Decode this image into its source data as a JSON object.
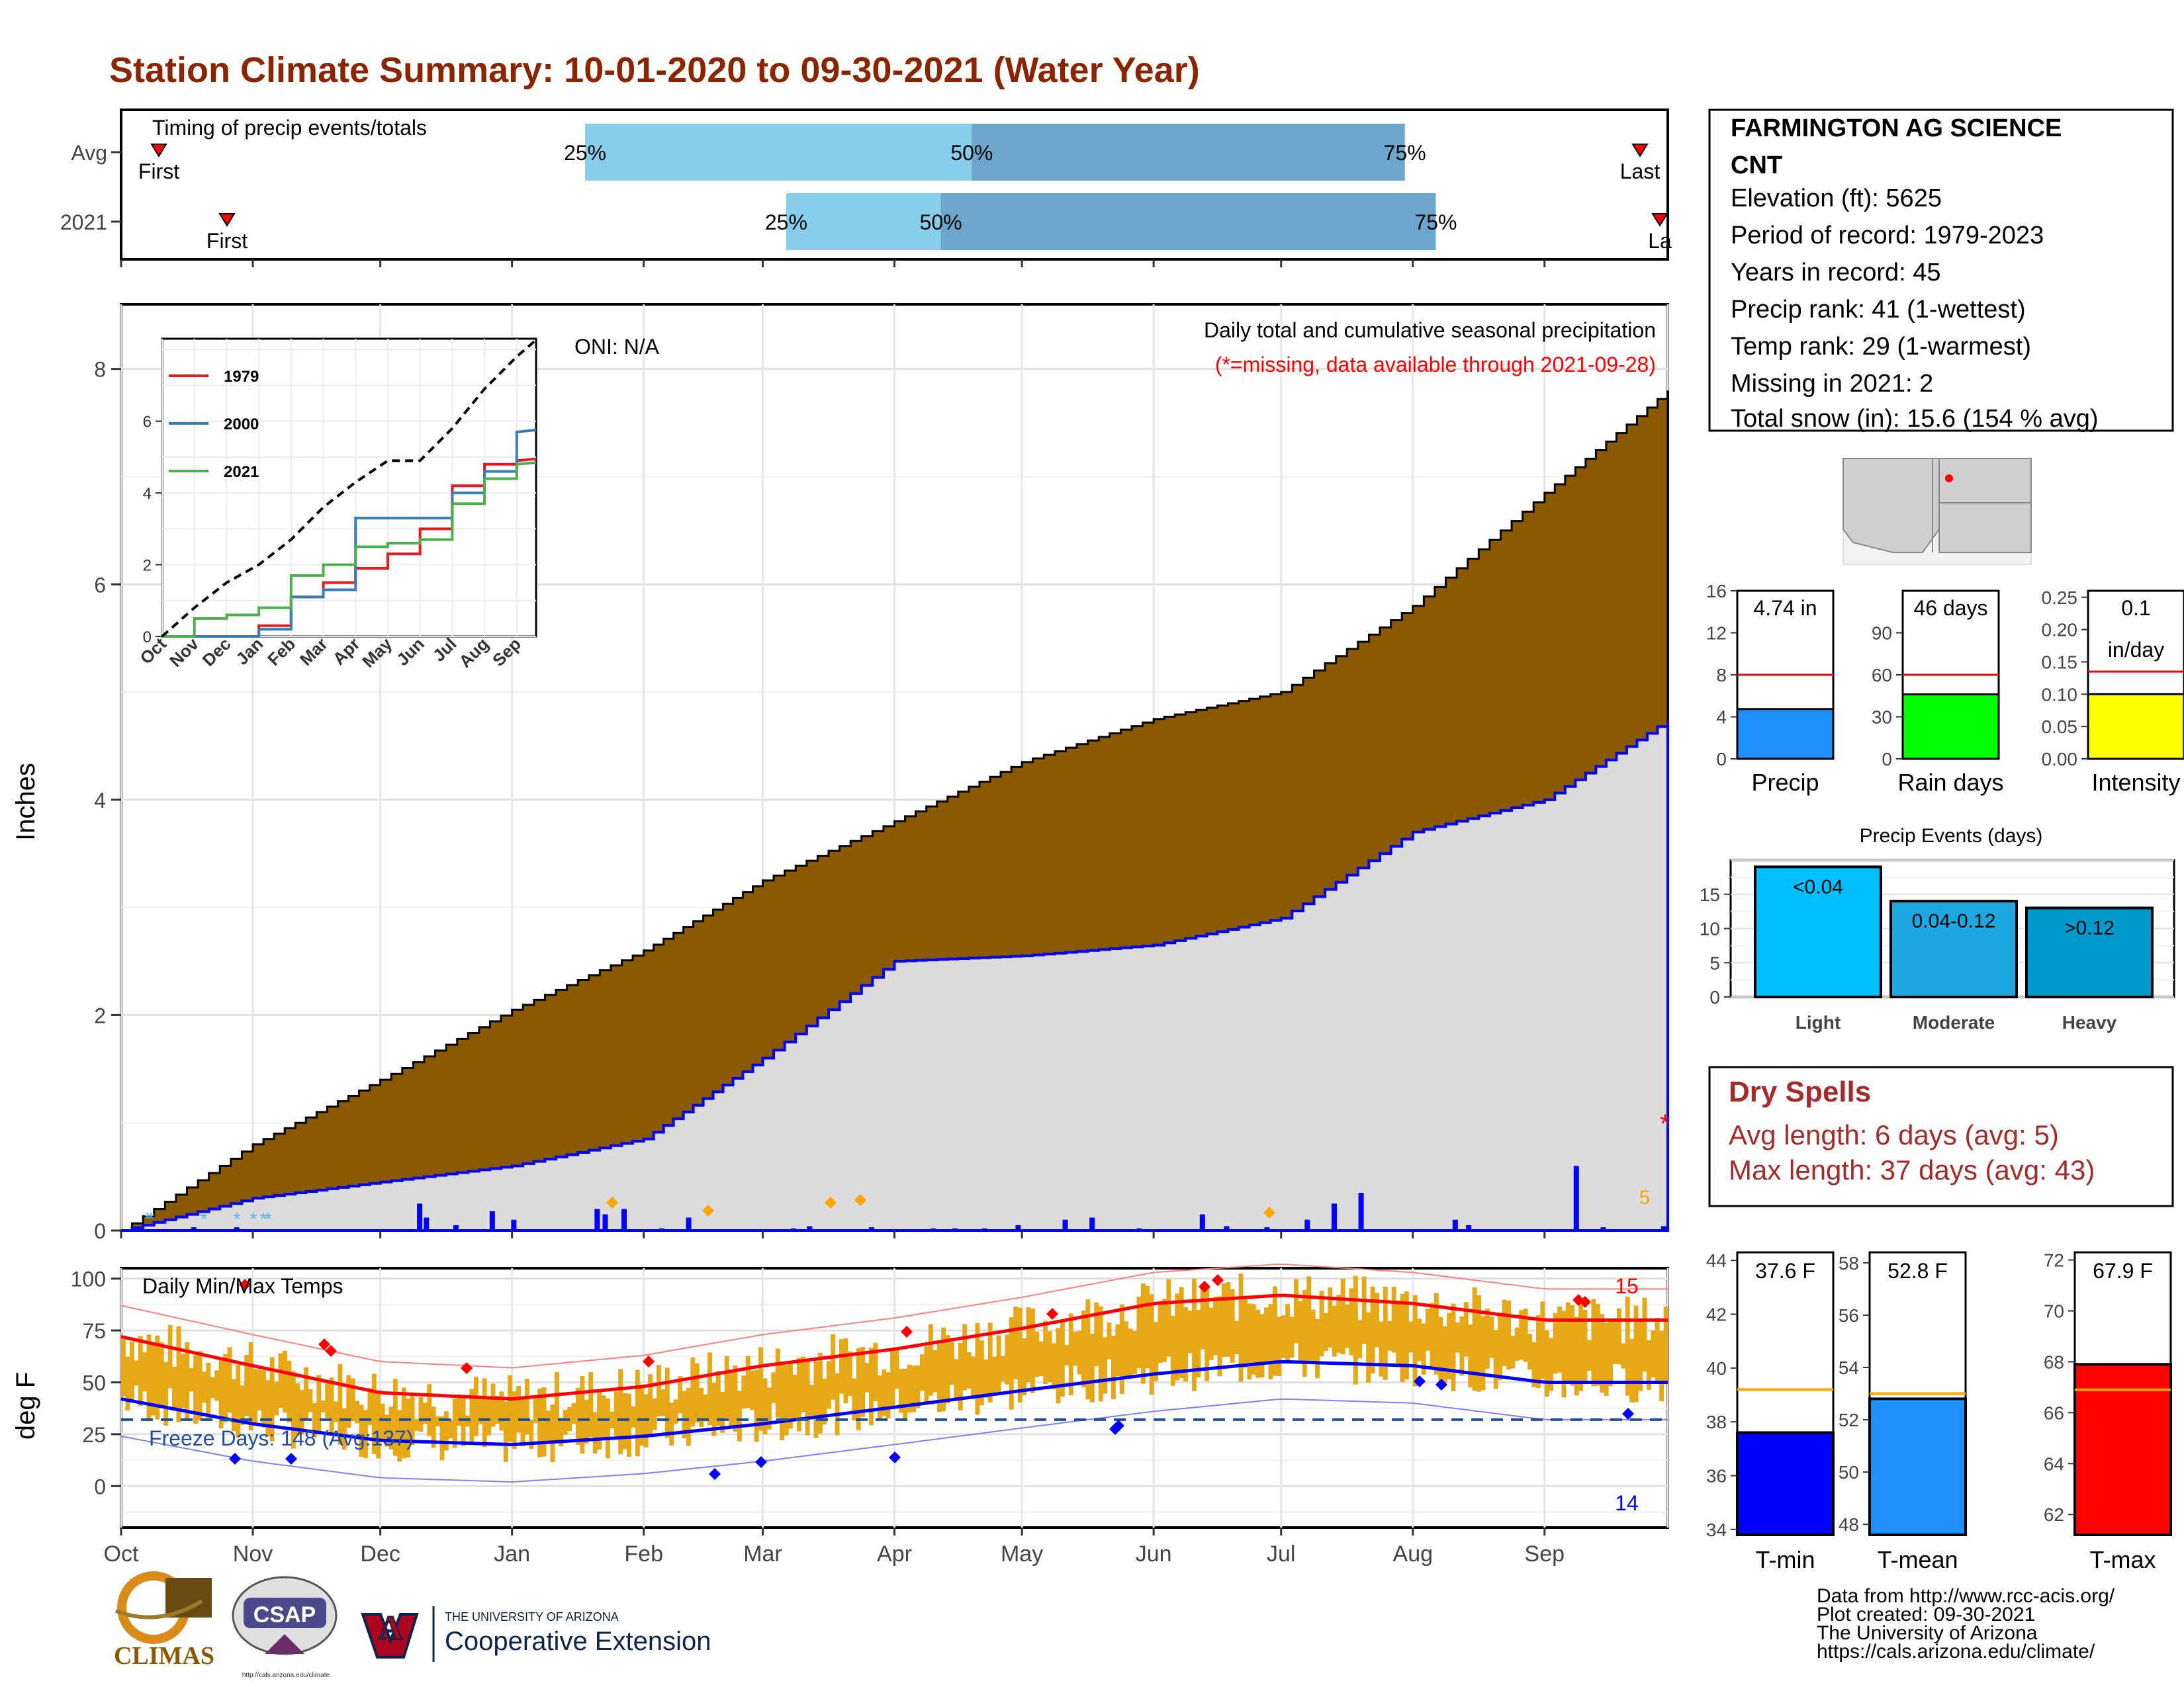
{
  "title": "Station Climate Summary: 10-01-2020 to 09-30-2021 (Water Year)",
  "colors": {
    "title": "#8B2500",
    "brown": "#8B5A00",
    "gray_fill": "#DCDCDC",
    "blue": "#0000FF",
    "light_blue": "#87CEEB",
    "mid_blue": "#6CA6CD",
    "orange": "#E6A817",
    "red": "#FF0000",
    "dry_spell": "#A52A2A",
    "green": "#00FF00",
    "yellow": "#FFFF00",
    "dodger": "#1E90FF",
    "deep_sky": "#00BFFF"
  },
  "timing": {
    "label": "Timing of precip events/totals",
    "rows": [
      {
        "name": "Avg",
        "first_label": "First",
        "last_label": "Last",
        "first": 0.0,
        "q25": 0.3,
        "q50": 0.55,
        "q75": 0.83,
        "last": 0.98
      },
      {
        "name": "2021",
        "first_label": "First",
        "last_label": "La",
        "first": 0.07,
        "q25": 0.43,
        "q50": 0.53,
        "q75": 0.85,
        "last": 1.0
      }
    ],
    "q_labels": [
      "25%",
      "50%",
      "75%"
    ]
  },
  "station_info": {
    "name": "FARMINGTON AG SCIENCE",
    "name2": "CNT",
    "lines": [
      "Elevation (ft): 5625",
      "Period of record: 1979-2023",
      "Years in record: 45",
      "Precip rank: 41 (1-wettest)",
      "Temp rank: 29 (1-warmest)",
      "Missing in 2021: 2",
      "Total snow (in): 15.6 (154 % avg)"
    ]
  },
  "precip_panel": {
    "ylabel": "Inches",
    "oni": "ONI: N/A",
    "title": "Daily total and cumulative seasonal precipitation",
    "subtitle": "(*=missing, data available through 2021-09-28)",
    "count_label": "5"
  },
  "temp_panel": {
    "ylabel": "deg F",
    "title": "Daily Min/Max Temps",
    "freeze": "Freeze Days: 148 (Avg:137)",
    "max_count": "15",
    "min_count": "14"
  },
  "months": [
    "Oct",
    "Nov",
    "Dec",
    "Jan",
    "Feb",
    "Mar",
    "Apr",
    "May",
    "Jun",
    "Jul",
    "Aug",
    "Sep"
  ],
  "chart_data": [
    {
      "type": "area",
      "title": "Daily total and cumulative seasonal precipitation",
      "ylabel": "Inches",
      "ylim": [
        0,
        8.6
      ],
      "x": [
        "Oct 1",
        "Nov 1",
        "Dec 1",
        "Jan 1",
        "Feb 1",
        "Mar 1",
        "Apr 1",
        "May 1",
        "Jun 1",
        "Jul 1",
        "Aug 1",
        "Sep 1",
        "Sep 30"
      ],
      "series": [
        {
          "name": "cumulative average",
          "values": [
            0.0,
            0.8,
            1.4,
            2.05,
            2.6,
            3.25,
            3.8,
            4.35,
            4.75,
            5.0,
            5.8,
            6.85,
            7.8
          ]
        },
        {
          "name": "cumulative 2021",
          "values": [
            0.0,
            0.3,
            0.45,
            0.6,
            0.85,
            1.6,
            2.5,
            2.55,
            2.65,
            2.9,
            3.7,
            4.0,
            4.74
          ]
        }
      ],
      "yticks": [
        0,
        2,
        4,
        6,
        8
      ]
    },
    {
      "type": "line",
      "title": "",
      "ylim": [
        0,
        8.3
      ],
      "categories": [
        "Oct",
        "Nov",
        "Dec",
        "Jan",
        "Feb",
        "Mar",
        "Apr",
        "May",
        "Jun",
        "Jul",
        "Aug",
        "Sep"
      ],
      "series": [
        {
          "name": "1979",
          "values": [
            0.0,
            0.0,
            0.0,
            0.3,
            1.1,
            1.5,
            1.9,
            2.3,
            3.0,
            4.2,
            4.8,
            4.9
          ]
        },
        {
          "name": "2000",
          "values": [
            0.0,
            0.0,
            0.0,
            0.2,
            1.1,
            1.3,
            3.3,
            3.3,
            3.3,
            4.0,
            4.6,
            5.7
          ]
        },
        {
          "name": "2021",
          "values": [
            0.0,
            0.5,
            0.6,
            0.8,
            1.7,
            2.0,
            2.5,
            2.6,
            2.7,
            3.7,
            4.4,
            4.8
          ]
        },
        {
          "name": "average",
          "values": [
            0.0,
            0.8,
            1.5,
            2.0,
            2.7,
            3.6,
            4.3,
            4.9,
            4.9,
            5.8,
            6.9,
            7.8
          ]
        }
      ],
      "yticks": [
        0,
        2,
        4,
        6
      ]
    },
    {
      "type": "line",
      "title": "Daily Min/Max Temps",
      "ylabel": "deg F",
      "ylim": [
        -20,
        105
      ],
      "categories": [
        "Oct",
        "Nov",
        "Dec",
        "Jan",
        "Feb",
        "Mar",
        "Apr",
        "May",
        "Jun",
        "Jul",
        "Aug",
        "Sep"
      ],
      "series": [
        {
          "name": "normal max",
          "values": [
            72,
            58,
            45,
            42,
            48,
            58,
            66,
            76,
            88,
            92,
            88,
            80
          ]
        },
        {
          "name": "normal min",
          "values": [
            42,
            30,
            22,
            20,
            24,
            30,
            38,
            46,
            54,
            60,
            58,
            50
          ]
        }
      ],
      "yticks": [
        0,
        25,
        50,
        75,
        100
      ]
    },
    {
      "type": "bar",
      "categories": [
        "Precip",
        "Rain days",
        "Intensity"
      ],
      "values": [
        4.74,
        46,
        0.1
      ],
      "averages": [
        8,
        60,
        0.135
      ],
      "value_labels": [
        "4.74 in",
        "46 days",
        "0.1"
      ],
      "value_label2": "in/day",
      "ylims": [
        [
          0,
          16
        ],
        [
          0,
          120
        ],
        [
          0,
          0.26
        ]
      ],
      "yticks": [
        [
          "0",
          "4",
          "8",
          "12",
          "16"
        ],
        [
          "0",
          "30",
          "60",
          "90"
        ],
        [
          "0.00",
          "0.05",
          "0.10",
          "0.15",
          "0.20",
          "0.25"
        ]
      ]
    },
    {
      "type": "bar",
      "title": "Precip Events (days)",
      "categories": [
        "Light",
        "Moderate",
        "Heavy"
      ],
      "bar_labels": [
        "<0.04",
        "0.04-0.12",
        ">0.12"
      ],
      "values": [
        19,
        14,
        13
      ],
      "ylim": [
        0,
        20
      ],
      "yticks": [
        0,
        5,
        10,
        15
      ]
    },
    {
      "type": "bar",
      "categories": [
        "T-min",
        "T-mean",
        "T-max"
      ],
      "values": [
        37.6,
        52.8,
        67.9
      ],
      "averages": [
        39.2,
        53.0,
        66.9
      ],
      "value_labels": [
        "37.6 F",
        "52.8 F",
        "67.9 F"
      ],
      "ylims": [
        [
          33.8,
          44.3
        ],
        [
          47.6,
          58.4
        ],
        [
          61.2,
          72.3
        ]
      ],
      "yticks": [
        [
          "34",
          "36",
          "38",
          "40",
          "42",
          "44"
        ],
        [
          "48",
          "50",
          "52",
          "54",
          "56",
          "58"
        ],
        [
          "62",
          "64",
          "66",
          "68",
          "70",
          "72"
        ]
      ]
    }
  ],
  "dry_spells": {
    "title": "Dry Spells",
    "avg": "Avg length: 6 days (avg: 5)",
    "max": "Max length: 37 days (avg: 43)"
  },
  "footer": {
    "lines": [
      "Data from http://www.rcc-acis.org/",
      "Plot created: 09-30-2021",
      "The University of Arizona",
      "https://cals.arizona.edu/climate/"
    ]
  },
  "logos": {
    "climas": "CLIMAS",
    "csap": "CSAP",
    "csap_url": "http://cals.arizona.edu/climate",
    "ua_top": "THE UNIVERSITY OF ARIZONA",
    "ua_bottom": "Cooperative Extension"
  }
}
